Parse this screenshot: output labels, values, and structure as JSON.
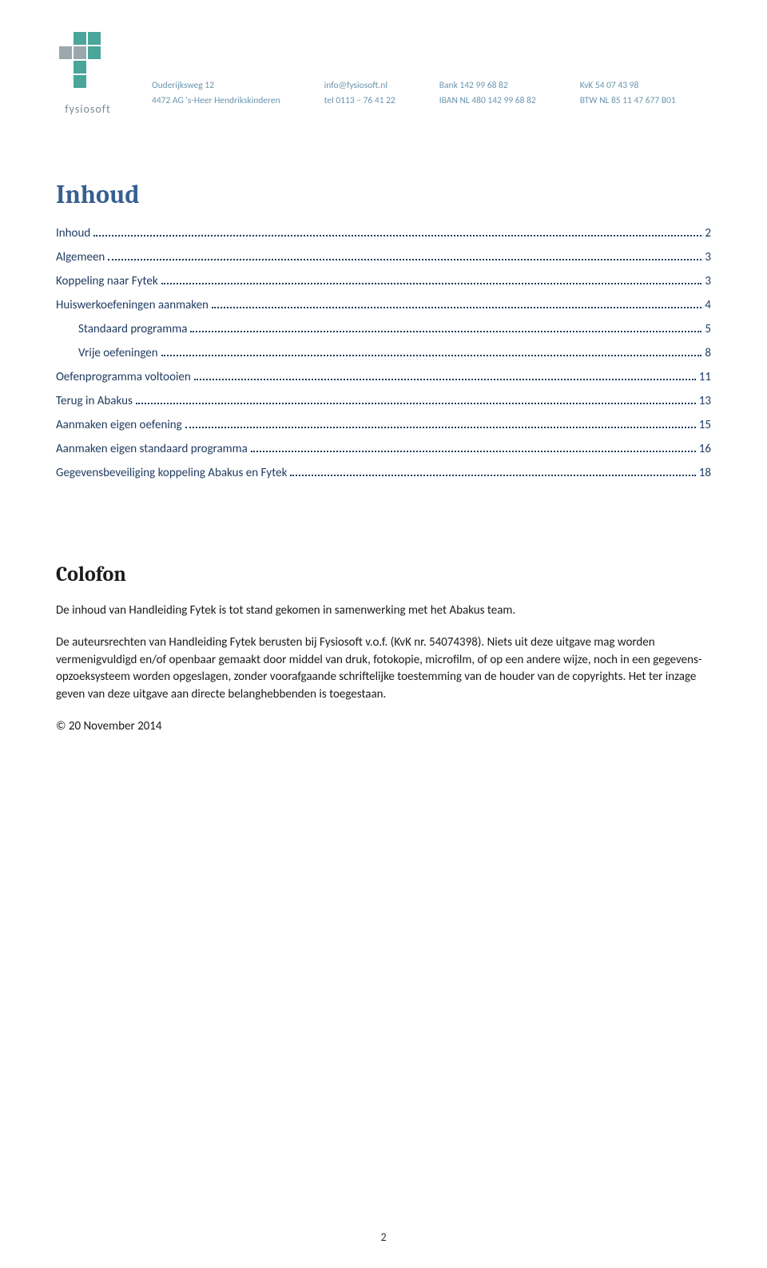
{
  "header": {
    "logo_label": "fysiosoft",
    "logo_colors": {
      "teal": "#4aa59a",
      "gray": "#9aa8ad"
    },
    "cols": [
      [
        "Ouderijksweg 12",
        "4472 AG 's-Heer Hendrikskinderen"
      ],
      [
        "info@fysiosoft.nl",
        "tel 0113 – 76 41 22"
      ],
      [
        "Bank  142 99 68 82",
        "IBAN  NL 480 142 99 68 82"
      ],
      [
        "KvK   54 07 43 98",
        "BTW  NL 85 11 47 677 B01"
      ]
    ]
  },
  "toc": {
    "title": "Inhoud",
    "items": [
      {
        "label": "Inhoud",
        "page": "2",
        "indent": false
      },
      {
        "label": "Algemeen",
        "page": "3",
        "indent": false
      },
      {
        "label": "Koppeling naar Fytek",
        "page": "3",
        "indent": false
      },
      {
        "label": "Huiswerkoefeningen aanmaken",
        "page": "4",
        "indent": false
      },
      {
        "label": "Standaard programma",
        "page": "5",
        "indent": true
      },
      {
        "label": "Vrije oefeningen",
        "page": "8",
        "indent": true
      },
      {
        "label": "Oefenprogramma voltooien",
        "page": "11",
        "indent": false
      },
      {
        "label": "Terug in Abakus",
        "page": "13",
        "indent": false
      },
      {
        "label": "Aanmaken eigen oefening",
        "page": "15",
        "indent": false
      },
      {
        "label": "Aanmaken eigen standaard programma",
        "page": "16",
        "indent": false
      },
      {
        "label": "Gegevensbeveiliging koppeling Abakus en Fytek",
        "page": "18",
        "indent": false
      }
    ]
  },
  "colofon": {
    "title": "Colofon",
    "p1": "De inhoud van Handleiding Fytek is tot stand gekomen in samenwerking met het Abakus team.",
    "p2": "De auteursrechten van Handleiding Fytek berusten bij Fysiosoft v.o.f. (KvK nr. 54074398). Niets uit deze uitgave mag worden vermenigvuldigd en/of openbaar gemaakt door middel van druk, fotokopie, microfilm, of op een andere wijze, noch in een gegevens-opzoeksysteem worden opgeslagen, zonder voorafgaande schriftelijke toestemming van de houder van de copyrights. Het ter inzage geven van deze uitgave aan directe belanghebbenden is toegestaan.",
    "p3": "© 20 November 2014"
  },
  "page_number": "2",
  "styles": {
    "title_color": "#365f91",
    "toc_text_color": "#1f3a5f",
    "header_text_color": "#6a94ad",
    "body_text_color": "#1a1a1a"
  }
}
